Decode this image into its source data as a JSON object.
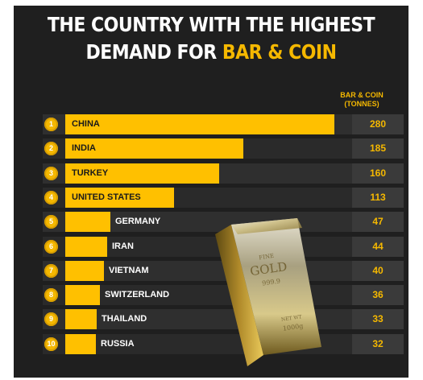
{
  "chart_data": {
    "type": "bar",
    "title_line1": "THE COUNTRY WITH THE HIGHEST",
    "title_line2_prefix": "DEMAND FOR ",
    "title_line2_highlight": "BAR & COIN",
    "value_header_line1": "BAR & COIN",
    "value_header_line2": "(TONNES)",
    "categories": [
      "CHINA",
      "INDIA",
      "TURKEY",
      "UNITED STATES",
      "GERMANY",
      "IRAN",
      "VIETNAM",
      "SWITZERLAND",
      "THAILAND",
      "RUSSIA"
    ],
    "ranks": [
      "1",
      "2",
      "3",
      "4",
      "5",
      "6",
      "7",
      "8",
      "9",
      "10"
    ],
    "values": [
      280,
      185,
      160,
      113,
      47,
      44,
      40,
      36,
      33,
      32
    ],
    "value_labels": [
      "280",
      "185",
      "160",
      "113",
      "47",
      "44",
      "40",
      "36",
      "33",
      "32"
    ],
    "bar_color": "#ffc000",
    "accent_color": "#f5b800",
    "background_color": "#1f1f1f"
  },
  "illustration": {
    "bar_stamp_line1": "FINE",
    "bar_stamp_line2": "GOLD",
    "bar_stamp_line3": "999.9",
    "bar_stamp_line4": "NET WT",
    "bar_stamp_line5": "1000g"
  }
}
